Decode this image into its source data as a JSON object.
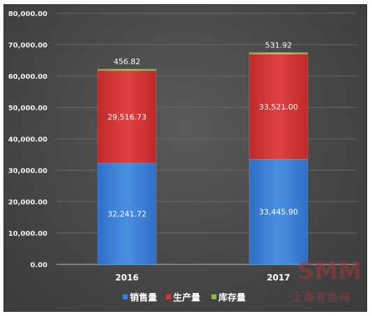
{
  "chart_data": {
    "type": "bar",
    "stacked": true,
    "categories": [
      "2016",
      "2017"
    ],
    "series": [
      {
        "name": "销售量",
        "color": "#3a7fd4",
        "values": [
          32241.72,
          33445.9
        ],
        "labels": [
          "32,241.72",
          "33,445.90"
        ]
      },
      {
        "name": "生产量",
        "color": "#d63434",
        "values": [
          29516.73,
          33521.0
        ],
        "labels": [
          "29,516.73",
          "33,521.00"
        ]
      },
      {
        "name": "库存量",
        "color": "#8fbc3f",
        "values": [
          456.82,
          531.92
        ],
        "labels": [
          "456.82",
          "531.92"
        ]
      }
    ],
    "yticks": [
      "0.00",
      "10,000.00",
      "20,000.00",
      "30,000.00",
      "40,000.00",
      "50,000.00",
      "60,000.00",
      "70,000.00",
      "80,000.00"
    ],
    "ylim": [
      0,
      80000
    ],
    "grid": true,
    "legend_position": "bottom"
  },
  "watermark": {
    "logo": "SMM",
    "text": "上海有色网"
  }
}
